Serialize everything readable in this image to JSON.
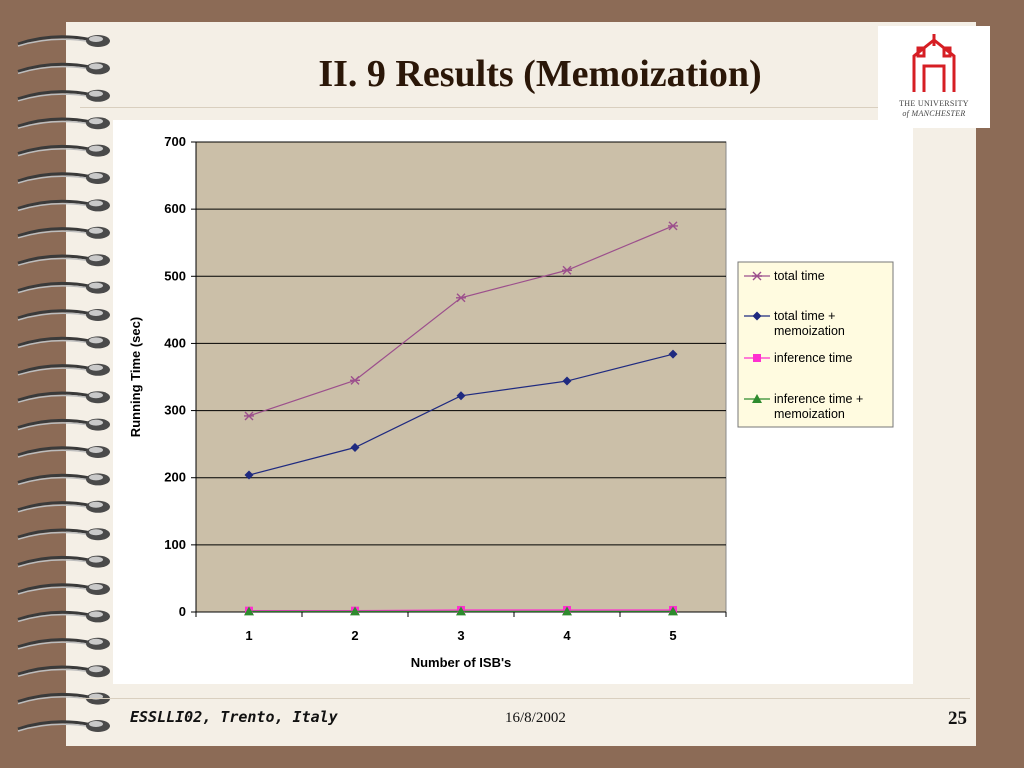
{
  "slide": {
    "title": "II. 9 Results (Memoization)",
    "footer_left": "ESSLLI02, Trento, Italy",
    "footer_date": "16/8/2002",
    "page_number": "25",
    "logo": {
      "line1": "THE UNIVERSITY",
      "line2": "of MANCHESTER",
      "color": "#d61e24"
    }
  },
  "chart_data": {
    "type": "line",
    "x": [
      1,
      2,
      3,
      4,
      5
    ],
    "xlabel": "Number of ISB's",
    "ylabel": "Running Time (sec)",
    "ylim": [
      0,
      700
    ],
    "yticks": [
      0,
      100,
      200,
      300,
      400,
      500,
      600,
      700
    ],
    "grid": true,
    "legend": "right",
    "plot_background": "#cbbfa8",
    "series": [
      {
        "name": "total time",
        "values": [
          292,
          345,
          468,
          509,
          575
        ],
        "color": "#9c4f8c",
        "marker": "star"
      },
      {
        "name": "total time + memoization",
        "values": [
          204,
          245,
          322,
          344,
          384
        ],
        "color": "#1f2a80",
        "marker": "diamond"
      },
      {
        "name": "inference time",
        "values": [
          2,
          2,
          3,
          3,
          3
        ],
        "color": "#ff2fd0",
        "marker": "square"
      },
      {
        "name": "inference time + memoization",
        "values": [
          1,
          1,
          1,
          1,
          1
        ],
        "color": "#2e8b2e",
        "marker": "triangle"
      }
    ]
  }
}
